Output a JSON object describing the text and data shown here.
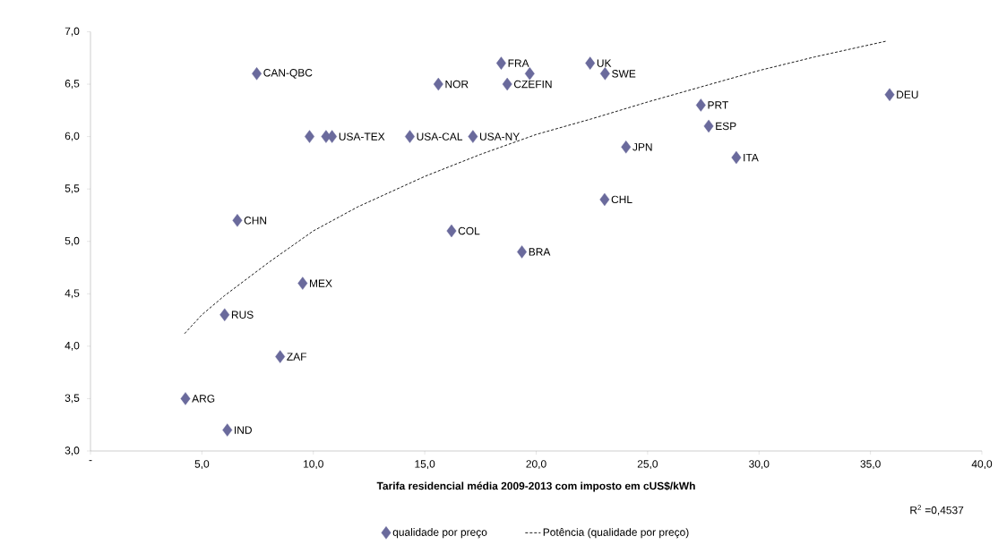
{
  "chart_data": {
    "type": "scatter",
    "xlabel": "Tarifa residencial média 2009-2013 com imposto em cUS$/kWh",
    "xlim": [
      0,
      40
    ],
    "ylim": [
      3,
      7
    ],
    "xticks": [
      {
        "value": 0,
        "label": "-"
      },
      {
        "value": 5,
        "label": "5,0"
      },
      {
        "value": 10,
        "label": "10,0"
      },
      {
        "value": 15,
        "label": "15,0"
      },
      {
        "value": 20,
        "label": "20,0"
      },
      {
        "value": 25,
        "label": "25,0"
      },
      {
        "value": 30,
        "label": "30,0"
      },
      {
        "value": 35,
        "label": "35,0"
      },
      {
        "value": 40,
        "label": "40,0"
      }
    ],
    "yticks": [
      {
        "value": 3,
        "label": "3,0"
      },
      {
        "value": 3.5,
        "label": "3,5"
      },
      {
        "value": 4,
        "label": "4,0"
      },
      {
        "value": 4.5,
        "label": "4,5"
      },
      {
        "value": 5,
        "label": "5,0"
      },
      {
        "value": 5.5,
        "label": "5,5"
      },
      {
        "value": 6,
        "label": "6,0"
      },
      {
        "value": 6.5,
        "label": "6,5"
      },
      {
        "value": 7,
        "label": "7,0"
      }
    ],
    "legend": "bottom",
    "series": [
      {
        "name": "qualidade por preço",
        "color": "#6a6a9c",
        "marker": "diamond",
        "x": [
          7.46,
          9.83,
          10.57,
          10.84,
          14.33,
          17.16,
          15.61,
          18.43,
          18.7,
          19.71,
          6.59,
          16.2,
          22.42,
          23.09,
          27.39,
          27.74,
          28.98,
          35.86,
          24.03,
          23.07,
          19.36,
          9.52,
          6.02,
          8.51,
          4.26,
          6.14
        ],
        "values": [
          6.6,
          6.0,
          6.0,
          6.0,
          6.0,
          6.0,
          6.5,
          6.7,
          6.5,
          6.6,
          5.2,
          5.1,
          6.7,
          6.6,
          6.3,
          6.1,
          5.8,
          6.4,
          5.9,
          5.4,
          4.9,
          4.6,
          4.3,
          3.9,
          3.5,
          3.2
        ]
      },
      {
        "name": "Potência (qualidade por preço)",
        "type": "line",
        "color": "#000000",
        "marker": "none",
        "line_style": "dashed",
        "x": [
          4.22,
          5,
          6,
          7,
          8,
          10,
          12,
          15,
          17.5,
          20,
          22.5,
          25,
          27.5,
          30,
          32.5,
          35.7
        ],
        "values": [
          4.12,
          4.3,
          4.48,
          4.64,
          4.8,
          5.1,
          5.33,
          5.62,
          5.83,
          6.02,
          6.17,
          6.33,
          6.48,
          6.63,
          6.76,
          6.91
        ]
      }
    ],
    "annotations": [
      {
        "text": "CAN-QBC",
        "x": 7.46,
        "y": 6.6
      },
      {
        "text": "USA-TEX",
        "x": 10.84,
        "y": 6.0
      },
      {
        "text": "USA-CAL",
        "x": 14.33,
        "y": 6.0
      },
      {
        "text": "USA-NY",
        "x": 17.16,
        "y": 6.0
      },
      {
        "text": "NOR",
        "x": 15.61,
        "y": 6.5
      },
      {
        "text": "FRA",
        "x": 18.43,
        "y": 6.7
      },
      {
        "text": "CZEFIN",
        "x": 18.7,
        "y": 6.5
      },
      {
        "text": "CHN",
        "x": 6.59,
        "y": 5.2
      },
      {
        "text": "COL",
        "x": 16.2,
        "y": 5.1
      },
      {
        "text": "UK",
        "x": 22.42,
        "y": 6.7
      },
      {
        "text": "SWE",
        "x": 23.09,
        "y": 6.6
      },
      {
        "text": "PRT",
        "x": 27.39,
        "y": 6.3
      },
      {
        "text": "ESP",
        "x": 27.74,
        "y": 6.1
      },
      {
        "text": "ITA",
        "x": 28.98,
        "y": 5.8
      },
      {
        "text": "DEU",
        "x": 35.86,
        "y": 6.4
      },
      {
        "text": "JPN",
        "x": 24.03,
        "y": 5.9
      },
      {
        "text": "CHL",
        "x": 23.07,
        "y": 5.4
      },
      {
        "text": "BRA",
        "x": 19.36,
        "y": 4.9
      },
      {
        "text": "MEX",
        "x": 9.52,
        "y": 4.6
      },
      {
        "text": "RUS",
        "x": 6.02,
        "y": 4.3
      },
      {
        "text": "ZAF",
        "x": 8.51,
        "y": 3.9
      },
      {
        "text": "ARG",
        "x": 4.26,
        "y": 3.5
      },
      {
        "text": "IND",
        "x": 6.14,
        "y": 3.2
      },
      "R$^{2}$ =0,4537"
    ]
  }
}
